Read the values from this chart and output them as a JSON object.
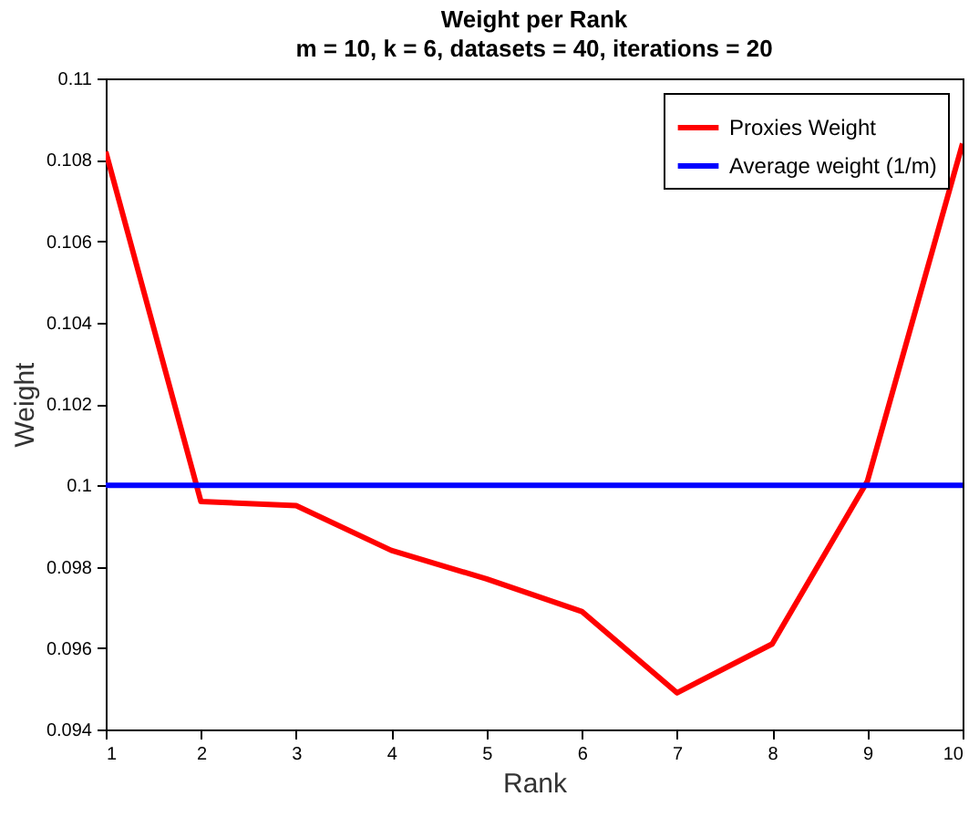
{
  "chart_data": {
    "type": "line",
    "title": "Weight per Rank",
    "subtitle": "m = 10,  k = 6, datasets = 40, iterations = 20",
    "xlabel": "Rank",
    "ylabel": "Weight",
    "x": [
      1,
      2,
      3,
      4,
      5,
      6,
      7,
      8,
      9,
      10
    ],
    "series": [
      {
        "name": "Proxies Weight",
        "color": "#ff0000",
        "values": [
          0.1082,
          0.0996,
          0.0995,
          0.0984,
          0.0977,
          0.0969,
          0.0949,
          0.0961,
          0.1001,
          0.1084
        ]
      },
      {
        "name": "Average weight (1/m)",
        "color": "#0000ff",
        "values": [
          0.1,
          0.1,
          0.1,
          0.1,
          0.1,
          0.1,
          0.1,
          0.1,
          0.1,
          0.1
        ]
      }
    ],
    "xlim": [
      1,
      10
    ],
    "xticks": [
      1,
      2,
      3,
      4,
      5,
      6,
      7,
      8,
      9,
      10
    ],
    "ylim": [
      0.094,
      0.11
    ],
    "yticks": [
      0.094,
      0.096,
      0.098,
      0.1,
      0.102,
      0.104,
      0.106,
      0.108,
      0.11
    ],
    "grid": false,
    "legend": "top right",
    "marker": "none",
    "line_style": "solid"
  }
}
